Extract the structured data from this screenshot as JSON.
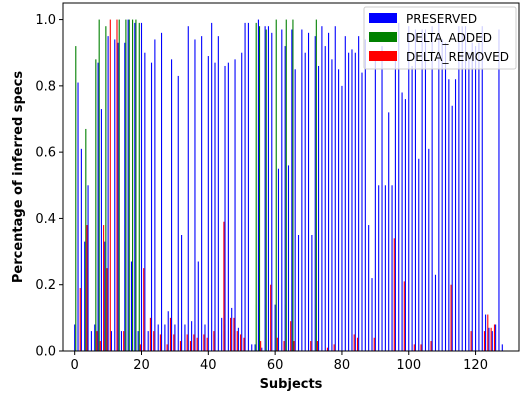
{
  "chart_data": {
    "type": "bar",
    "xlabel": "Subjects",
    "ylabel": "Percentage of inferred specs",
    "xlim": [
      -3.5,
      133
    ],
    "ylim": [
      0.0,
      1.05
    ],
    "xticks": [
      0,
      20,
      40,
      60,
      80,
      100,
      120
    ],
    "yticks": [
      0.0,
      0.2,
      0.4,
      0.6,
      0.8,
      1.0
    ],
    "grid": false,
    "legend": "top-right",
    "series": [
      {
        "name": "PRESERVED",
        "color": "#0000ff",
        "values": [
          0.08,
          0.81,
          0.61,
          0.33,
          0.5,
          0.06,
          0.08,
          0.87,
          0.73,
          0.33,
          0.95,
          0.06,
          0.94,
          0.93,
          0.06,
          0.93,
          1.0,
          0.27,
          0.99,
          0.06,
          0.99,
          0.9,
          0.06,
          0.87,
          0.94,
          0.08,
          0.96,
          0.08,
          0.12,
          0.88,
          0.08,
          0.83,
          0.35,
          0.08,
          0.98,
          0.09,
          0.94,
          0.27,
          0.95,
          0.08,
          0.89,
          0.99,
          0.87,
          0.95,
          0.1,
          0.86,
          0.87,
          0.13,
          0.88,
          0.07,
          0.9,
          0.99,
          0.99,
          0.02,
          0.02,
          1.0,
          0.01,
          0.98,
          0.98,
          0.96,
          0.14,
          0.55,
          0.97,
          0.92,
          0.56,
          0.97,
          0.85,
          0.35,
          0.97,
          0.9,
          0.96,
          0.35,
          0.95,
          0.86,
          0.98,
          0.92,
          0.96,
          0.88,
          0.98,
          0.85,
          0.8,
          0.95,
          0.9,
          0.91,
          0.9,
          0.95,
          0.84,
          0.94,
          0.38,
          0.22,
          0.89,
          0.5,
          0.92,
          0.5,
          0.72,
          0.5,
          0.88,
          0.99,
          0.78,
          0.76,
          0.98,
          0.86,
          0.97,
          0.58,
          0.97,
          0.97,
          0.61,
          0.98,
          0.23,
          0.99,
          0.94,
          0.93,
          0.82,
          0.74,
          0.82,
          0.98,
          0.98,
          0.98,
          0.9,
          0.93,
          0.92,
          0.93,
          0.98,
          0.11,
          0.07,
          0.06,
          0.08,
          0.97,
          0.02
        ]
      },
      {
        "name": "DELTA_ADDED",
        "color": "#008000",
        "values": [
          0.92,
          0.0,
          0.0,
          0.67,
          0.0,
          0.0,
          0.88,
          1.0,
          0.0,
          0.98,
          0.0,
          0.0,
          0.0,
          1.0,
          0.0,
          1.0,
          1.0,
          1.0,
          1.0,
          0.99,
          0.0,
          0.0,
          0.0,
          0.0,
          0.0,
          0.0,
          0.0,
          0.0,
          0.0,
          0.0,
          0.0,
          0.0,
          0.0,
          0.0,
          0.0,
          0.0,
          0.0,
          0.0,
          0.0,
          0.0,
          0.0,
          0.0,
          0.0,
          0.0,
          0.0,
          0.0,
          0.0,
          0.0,
          0.0,
          0.0,
          0.0,
          0.0,
          0.0,
          0.0,
          0.99,
          0.98,
          0.0,
          0.97,
          0.0,
          0.0,
          1.0,
          0.0,
          0.0,
          1.0,
          0.0,
          1.0,
          0.0,
          0.0,
          0.0,
          0.0,
          0.0,
          0.0,
          1.0,
          0.0,
          0.0,
          0.0,
          0.0,
          0.0,
          0.0,
          0.0,
          0.0,
          0.0,
          0.0,
          0.0,
          0.0,
          0.0,
          0.0,
          0.0,
          0.0,
          0.0,
          0.0,
          0.0,
          0.0,
          0.0,
          0.0,
          0.0,
          0.0,
          0.0,
          0.0,
          0.0,
          0.0,
          0.0,
          0.0,
          0.0,
          0.0,
          0.0,
          0.0,
          0.0,
          0.0,
          0.0,
          0.0,
          0.0,
          0.0,
          0.0,
          0.0,
          0.0,
          0.0,
          0.0,
          0.0,
          0.0,
          0.0,
          0.0,
          0.0,
          0.0,
          0.0,
          0.0,
          0.0,
          0.0,
          0.0
        ]
      },
      {
        "name": "DELTA_REMOVED",
        "color": "#ff0000",
        "values": [
          0.0,
          0.19,
          0.0,
          0.38,
          0.0,
          0.0,
          0.06,
          0.03,
          0.38,
          0.25,
          1.0,
          0.0,
          1.0,
          0.0,
          0.06,
          0.0,
          0.0,
          0.0,
          0.0,
          0.02,
          0.25,
          0.0,
          0.1,
          0.06,
          0.0,
          0.05,
          0.0,
          0.02,
          0.1,
          0.05,
          0.0,
          0.03,
          0.0,
          0.05,
          0.03,
          0.05,
          0.04,
          0.0,
          0.05,
          0.04,
          0.0,
          0.06,
          0.0,
          0.0,
          0.39,
          0.0,
          0.1,
          0.1,
          0.06,
          0.05,
          0.04,
          0.0,
          0.0,
          0.0,
          0.0,
          0.03,
          0.0,
          0.0,
          0.2,
          0.0,
          0.04,
          0.0,
          0.03,
          0.0,
          0.09,
          0.03,
          0.0,
          0.0,
          0.0,
          0.0,
          0.03,
          0.0,
          0.03,
          0.0,
          0.0,
          0.01,
          0.0,
          0.02,
          0.0,
          0.0,
          0.0,
          0.0,
          0.0,
          0.05,
          0.04,
          0.0,
          0.0,
          0.0,
          0.0,
          0.04,
          0.0,
          0.0,
          0.0,
          0.0,
          0.0,
          0.34,
          0.0,
          0.0,
          0.21,
          0.0,
          0.0,
          0.02,
          0.0,
          0.02,
          0.0,
          0.0,
          0.03,
          0.0,
          0.0,
          0.0,
          0.0,
          0.0,
          0.2,
          0.0,
          0.0,
          0.0,
          0.0,
          0.0,
          0.06,
          0.0,
          0.0,
          0.0,
          0.06,
          0.11,
          0.07,
          0.08,
          0.0,
          0.0,
          0.0
        ]
      }
    ]
  }
}
